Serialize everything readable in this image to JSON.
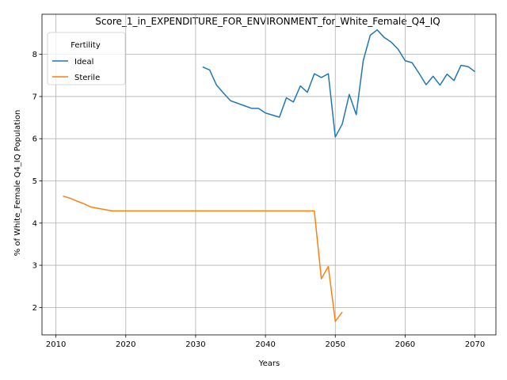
{
  "chart_data": {
    "type": "line",
    "title": "Score_1_in_EXPENDITURE_FOR_ENVIRONMENT_for_White_Female_Q4_IQ",
    "xlabel": "Years",
    "ylabel": "% of White_Female Q4_IQ Population",
    "xlim": [
      2008,
      2073
    ],
    "ylim": [
      1.35,
      8.95
    ],
    "xticks": [
      2010,
      2020,
      2030,
      2040,
      2050,
      2060,
      2070
    ],
    "yticks": [
      2,
      3,
      4,
      5,
      6,
      7,
      8
    ],
    "grid": true,
    "legend": {
      "title": "Fertility",
      "position": "upper-left"
    },
    "series": [
      {
        "name": "Ideal",
        "color": "#1f77b4",
        "x": [
          2031,
          2032,
          2033,
          2034,
          2035,
          2036,
          2037,
          2038,
          2039,
          2040,
          2041,
          2042,
          2043,
          2044,
          2045,
          2046,
          2047,
          2048,
          2049,
          2050,
          2051,
          2052,
          2053,
          2054,
          2055,
          2056,
          2057,
          2058,
          2059,
          2060,
          2061,
          2062,
          2063,
          2064,
          2065,
          2066,
          2067,
          2068,
          2069,
          2070
        ],
        "values": [
          7.7,
          7.63,
          7.27,
          7.08,
          6.9,
          6.84,
          6.78,
          6.72,
          6.72,
          6.61,
          6.56,
          6.51,
          6.97,
          6.87,
          7.25,
          7.1,
          7.54,
          7.45,
          7.54,
          6.04,
          6.35,
          7.05,
          6.57,
          7.85,
          8.45,
          8.58,
          8.4,
          8.29,
          8.12,
          7.85,
          7.8,
          7.55,
          7.28,
          7.48,
          7.27,
          7.53,
          7.38,
          7.74,
          7.71,
          7.59
        ]
      },
      {
        "name": "Sterile",
        "color": "#ff7f0e",
        "x": [
          2011,
          2012,
          2013,
          2014,
          2015,
          2016,
          2017,
          2018,
          2019,
          2020,
          2025,
          2030,
          2035,
          2040,
          2045,
          2047,
          2048,
          2049,
          2050,
          2051
        ],
        "values": [
          4.64,
          4.59,
          4.52,
          4.46,
          4.38,
          4.35,
          4.32,
          4.29,
          4.29,
          4.29,
          4.29,
          4.29,
          4.29,
          4.29,
          4.29,
          4.29,
          2.68,
          2.97,
          1.67,
          1.89
        ]
      }
    ]
  }
}
